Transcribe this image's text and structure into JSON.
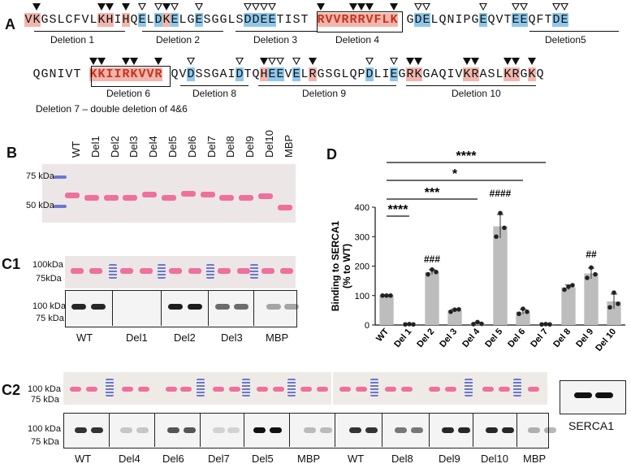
{
  "panel_a": {
    "letter": "A",
    "row1": [
      {
        "c": "V",
        "h": "pink"
      },
      {
        "c": "K",
        "h": "pink"
      },
      {
        "c": "G"
      },
      {
        "c": "S"
      },
      {
        "c": "L"
      },
      {
        "c": "C"
      },
      {
        "c": "F"
      },
      {
        "c": "V"
      },
      {
        "c": "L"
      },
      {
        "c": "K",
        "h": "pink"
      },
      {
        "c": "H",
        "h": "pink"
      },
      {
        "c": "I"
      },
      {
        "c": "H",
        "h": "pink"
      },
      {
        "c": "Q"
      },
      {
        "c": "E",
        "h": "blue"
      },
      {
        "c": "L"
      },
      {
        "c": "D",
        "h": "blue"
      },
      {
        "c": "K",
        "h": "pink"
      },
      {
        "c": "E",
        "h": "blue"
      },
      {
        "c": "L"
      },
      {
        "c": "G"
      },
      {
        "c": "E",
        "h": "blue"
      },
      {
        "c": "S"
      },
      {
        "c": "G"
      },
      {
        "c": "G"
      },
      {
        "c": "L"
      },
      {
        "c": "S"
      },
      {
        "c": "D",
        "h": "blue"
      },
      {
        "c": "D",
        "h": "blue"
      },
      {
        "c": "E",
        "h": "blue"
      },
      {
        "c": "E",
        "h": "blue"
      },
      {
        "c": "T"
      },
      {
        "c": "I"
      },
      {
        "c": "S"
      },
      {
        "c": "T"
      },
      {
        "c": " "
      },
      {
        "c": "R",
        "h": "pink",
        "red": true
      },
      {
        "c": "V",
        "h": "pink",
        "red": true
      },
      {
        "c": "V",
        "h": "pink",
        "red": true
      },
      {
        "c": "R",
        "h": "pink",
        "red": true
      },
      {
        "c": "R",
        "h": "pink",
        "red": true
      },
      {
        "c": "R",
        "h": "pink",
        "red": true
      },
      {
        "c": "V",
        "h": "pink",
        "red": true
      },
      {
        "c": "F",
        "h": "pink",
        "red": true
      },
      {
        "c": "L",
        "h": "pink",
        "red": true
      },
      {
        "c": "K",
        "h": "pink",
        "red": true
      },
      {
        "c": " "
      },
      {
        "c": "G"
      },
      {
        "c": "D",
        "h": "blue"
      },
      {
        "c": "E",
        "h": "blue"
      },
      {
        "c": "L"
      },
      {
        "c": "Q"
      },
      {
        "c": "N"
      },
      {
        "c": "I"
      },
      {
        "c": "P"
      },
      {
        "c": "G"
      },
      {
        "c": "E",
        "h": "blue"
      },
      {
        "c": "Q"
      },
      {
        "c": "V"
      },
      {
        "c": "T"
      },
      {
        "c": "E",
        "h": "blue"
      },
      {
        "c": "E",
        "h": "blue"
      },
      {
        "c": "Q"
      },
      {
        "c": "F"
      },
      {
        "c": "T"
      },
      {
        "c": "D",
        "h": "blue"
      },
      {
        "c": "E",
        "h": "blue"
      }
    ],
    "row2": [
      {
        "c": "Q"
      },
      {
        "c": "G"
      },
      {
        "c": "N"
      },
      {
        "c": "I"
      },
      {
        "c": "V"
      },
      {
        "c": "T"
      },
      {
        "c": " "
      },
      {
        "c": "K",
        "h": "pink",
        "red": true
      },
      {
        "c": "K",
        "h": "pink",
        "red": true
      },
      {
        "c": "I",
        "h": "pink",
        "red": true
      },
      {
        "c": "I",
        "h": "pink",
        "red": true
      },
      {
        "c": "R",
        "h": "pink",
        "red": true
      },
      {
        "c": "K",
        "h": "pink",
        "red": true
      },
      {
        "c": "V",
        "h": "pink",
        "red": true
      },
      {
        "c": "V",
        "h": "pink",
        "red": true
      },
      {
        "c": "R",
        "h": "pink",
        "red": true
      },
      {
        "c": " "
      },
      {
        "c": "Q"
      },
      {
        "c": "V"
      },
      {
        "c": "D",
        "h": "blue"
      },
      {
        "c": "S"
      },
      {
        "c": "S"
      },
      {
        "c": "G"
      },
      {
        "c": "A"
      },
      {
        "c": "I"
      },
      {
        "c": "D",
        "h": "blue"
      },
      {
        "c": "T"
      },
      {
        "c": "Q"
      },
      {
        "c": "H",
        "h": "pink"
      },
      {
        "c": "E",
        "h": "blue"
      },
      {
        "c": "E",
        "h": "blue"
      },
      {
        "c": "V"
      },
      {
        "c": "E",
        "h": "blue"
      },
      {
        "c": "L"
      },
      {
        "c": "R",
        "h": "pink"
      },
      {
        "c": "G"
      },
      {
        "c": "S"
      },
      {
        "c": "G"
      },
      {
        "c": "L"
      },
      {
        "c": "Q"
      },
      {
        "c": "P"
      },
      {
        "c": "D",
        "h": "blue"
      },
      {
        "c": "L"
      },
      {
        "c": "I"
      },
      {
        "c": "E",
        "h": "blue"
      },
      {
        "c": "G"
      },
      {
        "c": "R",
        "h": "pink"
      },
      {
        "c": "K",
        "h": "pink"
      },
      {
        "c": "G"
      },
      {
        "c": "A"
      },
      {
        "c": "Q"
      },
      {
        "c": "I"
      },
      {
        "c": "V"
      },
      {
        "c": "K",
        "h": "pink"
      },
      {
        "c": "R",
        "h": "pink"
      },
      {
        "c": "A"
      },
      {
        "c": "S"
      },
      {
        "c": "L"
      },
      {
        "c": "K",
        "h": "pink"
      },
      {
        "c": "R",
        "h": "pink"
      },
      {
        "c": "G"
      },
      {
        "c": "K",
        "h": "pink"
      },
      {
        "c": "Q"
      }
    ],
    "deletion_labels": {
      "d1": "Deletion 1",
      "d2": "Deletion 2",
      "d3": "Deletion 3",
      "d4": "Deletion 4",
      "d5": "Deletion5",
      "d6": "Deletion 6",
      "d8": "Deletion 8",
      "d9": "Deletion 9",
      "d10": "Deletion 10"
    },
    "note": "Deletion 7 – double deletion of 4&6"
  },
  "panel_b": {
    "letter": "B",
    "lanes": [
      "WT",
      "Del1",
      "Del2",
      "Del3",
      "Del4",
      "Del5",
      "Del6",
      "Del7",
      "Del8",
      "Del9",
      "Del10",
      "MBP"
    ],
    "marker_75": "75 kDa",
    "marker_50": "50 kDa"
  },
  "panel_c1": {
    "letter": "C1",
    "marker_100": "100kDa",
    "marker_75": "75kDa",
    "blot_marker_100": "100 kDa",
    "blot_marker_75": "75 kDa",
    "groups": [
      "WT",
      "Del1",
      "Del2",
      "Del3",
      "MBP"
    ]
  },
  "panel_c2": {
    "letter": "C2",
    "marker_100": "100 kDa",
    "marker_75": "75 kDa",
    "groups": [
      "WT",
      "Del4",
      "Del6",
      "Del7",
      "Del5",
      "MBP",
      "WT",
      "Del8",
      "Del9",
      "Del10",
      "MBP"
    ],
    "serca_label": "SERCA1"
  },
  "panel_d": {
    "letter": "D",
    "sig_top": [
      "****",
      "*",
      "***",
      "****"
    ],
    "hash_labels": {
      "Del 2": "###",
      "Del 5": "####",
      "Del 9": "##"
    }
  },
  "chart_data": {
    "type": "bar",
    "categories": [
      "WT",
      "Del 1",
      "Del 2",
      "Del 3",
      "Del 4",
      "Del 5",
      "Del 6",
      "Del 7",
      "Del 8",
      "Del 9",
      "Del 10"
    ],
    "values": [
      100,
      2,
      180,
      50,
      5,
      335,
      45,
      2,
      128,
      175,
      80
    ],
    "points": [
      [
        100,
        100,
        100
      ],
      [
        2,
        3,
        2
      ],
      [
        172,
        188,
        180
      ],
      [
        45,
        52,
        53
      ],
      [
        3,
        10,
        4
      ],
      [
        300,
        380,
        330
      ],
      [
        38,
        55,
        45
      ],
      [
        2,
        3,
        2
      ],
      [
        120,
        130,
        135
      ],
      [
        160,
        195,
        172
      ],
      [
        60,
        110,
        72
      ]
    ],
    "errors": [
      0,
      1,
      8,
      4,
      4,
      40,
      8,
      1,
      8,
      18,
      25
    ],
    "ylabel": "Binding to SERCA1\n(% to WT)",
    "ylabel_line1": "Binding to SERCA1",
    "ylabel_line2": "(% to WT)",
    "ylim": [
      0,
      400
    ],
    "yticks": [
      0,
      100,
      200,
      300,
      400
    ],
    "bar_color": "#bdbdbd"
  }
}
